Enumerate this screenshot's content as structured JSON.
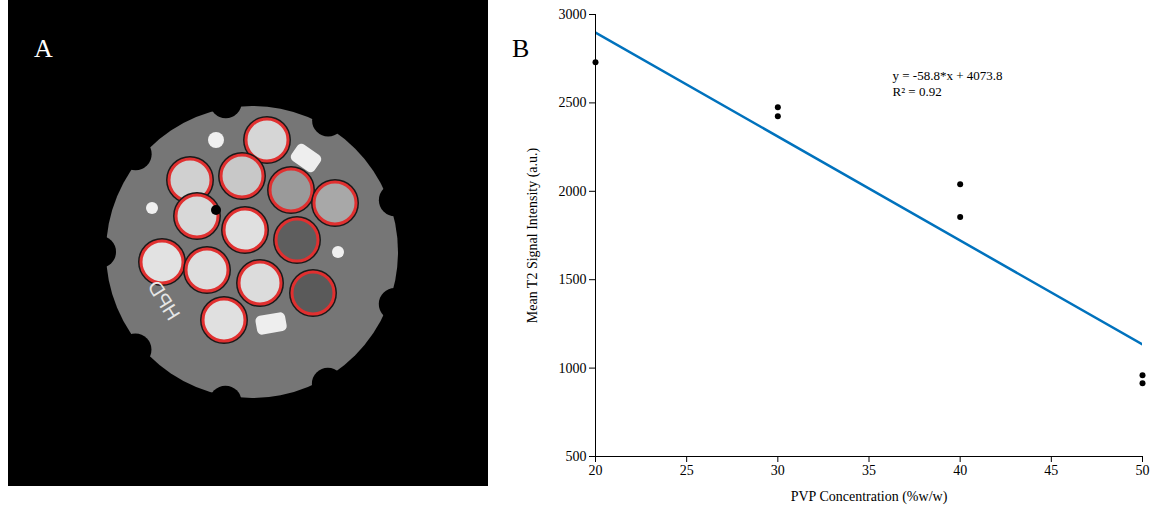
{
  "chart_data": {
    "type": "scatter",
    "panel_label": "B",
    "x_label": "PVP Concentration (%w/w)",
    "y_label": "Mean T2 Signal Intensity (a.u.)",
    "annotations": [
      "y = -58.8*x + 4073.8",
      "R² = 0.92"
    ],
    "series": [
      {
        "type": "scatter",
        "color": "#000000",
        "marker": "circle",
        "x": [
          20,
          30,
          30,
          40,
          40,
          50,
          50
        ],
        "values": [
          2730,
          2475,
          2425,
          2040,
          1855,
          960,
          915
        ]
      },
      {
        "type": "line",
        "color": "#0072bd",
        "line_style": "solid",
        "x": [
          20,
          50
        ],
        "values": [
          2897.8,
          1133.8
        ]
      }
    ],
    "xlim": [
      20,
      50
    ],
    "xticks": [
      20,
      25,
      30,
      35,
      40,
      45,
      50
    ],
    "ylim": [
      500,
      3000
    ],
    "yticks": [
      500,
      1000,
      1500,
      2000,
      2500,
      3000
    ],
    "grid": false
  },
  "image_panel": {
    "panel_label": "A",
    "texts": [
      "HPD"
    ]
  }
}
